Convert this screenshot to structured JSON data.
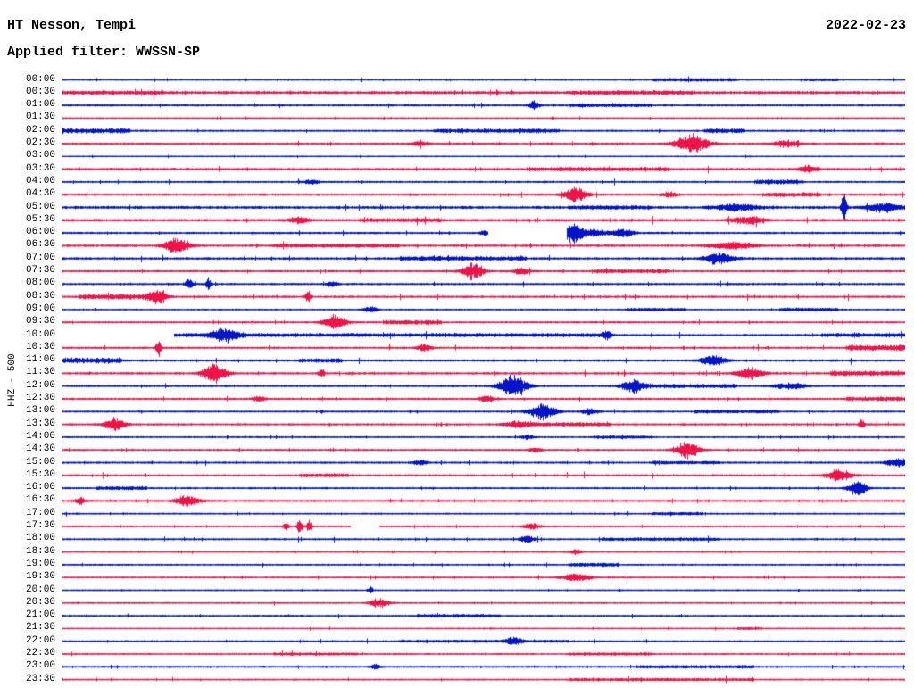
{
  "header": {
    "station": "HT Nesson, Tempi",
    "filter_label": "Applied filter: WWSSN-SP",
    "date": "2022-02-23"
  },
  "axis": {
    "channel_label": "HHZ - 500"
  },
  "colors": {
    "trace_blue": "#0014cc",
    "trace_red": "#f01248",
    "background": "#ffffff",
    "text": "#000000"
  },
  "chart_data": {
    "type": "line",
    "variant": "helicorder-seismogram",
    "title": "HT Nesson, Tempi",
    "subtitle": "Applied filter: WWSSN-SP",
    "date": "2022-02-23",
    "channel": "HHZ - 500",
    "minutes_per_row": 30,
    "rows_count": 48,
    "legend": "rows alternate blue (b) / red (r); e = events [position fraction, amplitude px, width px]; p = elevated-noise patches [start,end,amp]; g = data gaps [start,end]; n = base noise amplitude",
    "rows": [
      {
        "t": "00:00",
        "c": "b",
        "n": 0.5,
        "e": [],
        "p": [
          [
            0.7,
            0.8,
            1.2
          ],
          [
            0.88,
            0.92,
            0.8
          ]
        ],
        "g": []
      },
      {
        "t": "00:30",
        "c": "r",
        "n": 1.3,
        "e": [],
        "p": [
          [
            0.0,
            0.12,
            0.8
          ],
          [
            0.6,
            0.75,
            1.0
          ]
        ],
        "g": []
      },
      {
        "t": "01:00",
        "c": "b",
        "n": 0.8,
        "e": [
          [
            0.559,
            5,
            4
          ]
        ],
        "p": [
          [
            0.6,
            0.7,
            1.0
          ]
        ],
        "g": []
      },
      {
        "t": "01:30",
        "c": "r",
        "n": 0.45,
        "e": [],
        "p": [],
        "g": []
      },
      {
        "t": "02:00",
        "c": "b",
        "n": 0.7,
        "e": [],
        "p": [
          [
            0.0,
            0.08,
            1.8
          ],
          [
            0.44,
            0.59,
            1.4
          ],
          [
            0.76,
            0.81,
            1.6
          ]
        ],
        "g": []
      },
      {
        "t": "02:30",
        "c": "r",
        "n": 0.8,
        "e": [
          [
            0.747,
            13,
            12
          ],
          [
            0.424,
            3,
            6
          ],
          [
            0.858,
            4,
            10
          ]
        ],
        "p": [],
        "g": []
      },
      {
        "t": "03:00",
        "c": "b",
        "n": 0.4,
        "e": [],
        "p": [],
        "g": []
      },
      {
        "t": "03:30",
        "c": "r",
        "n": 1.0,
        "e": [
          [
            0.885,
            4,
            8
          ]
        ],
        "p": [
          [
            0.55,
            0.72,
            1.2
          ]
        ],
        "g": []
      },
      {
        "t": "04:00",
        "c": "b",
        "n": 0.7,
        "e": [
          [
            0.296,
            3,
            5
          ]
        ],
        "p": [
          [
            0.82,
            0.88,
            1.8
          ]
        ],
        "g": []
      },
      {
        "t": "04:30",
        "c": "r",
        "n": 0.9,
        "e": [
          [
            0.609,
            9,
            9
          ],
          [
            0.72,
            3,
            6
          ]
        ],
        "p": [
          [
            0.83,
            0.9,
            1.5
          ]
        ],
        "g": []
      },
      {
        "t": "05:00",
        "c": "b",
        "n": 1.2,
        "e": [
          [
            0.927,
            20,
            2
          ],
          [
            0.975,
            5,
            14
          ],
          [
            0.8,
            4,
            16
          ]
        ],
        "p": [
          [
            0.6,
            0.7,
            1.0
          ]
        ],
        "g": []
      },
      {
        "t": "05:30",
        "c": "r",
        "n": 1.1,
        "e": [
          [
            0.281,
            4,
            8
          ],
          [
            0.813,
            5,
            12
          ]
        ],
        "p": [
          [
            0.35,
            0.45,
            1.0
          ]
        ],
        "g": []
      },
      {
        "t": "06:00",
        "c": "b",
        "n": 0.8,
        "e": [
          [
            0.604,
            14,
            6
          ],
          [
            0.625,
            5,
            14
          ],
          [
            0.665,
            5,
            8
          ],
          [
            0.5,
            3,
            3
          ]
        ],
        "p": [],
        "g": [
          [
            0.505,
            0.598
          ]
        ]
      },
      {
        "t": "06:30",
        "c": "r",
        "n": 1.0,
        "e": [
          [
            0.135,
            10,
            9
          ],
          [
            0.795,
            5,
            16
          ]
        ],
        "p": [
          [
            0.25,
            0.4,
            1.0
          ]
        ],
        "g": []
      },
      {
        "t": "07:00",
        "c": "b",
        "n": 1.0,
        "e": [
          [
            0.779,
            8,
            11
          ]
        ],
        "p": [
          [
            0.4,
            0.55,
            1.3
          ]
        ],
        "g": []
      },
      {
        "t": "07:30",
        "c": "r",
        "n": 0.8,
        "e": [
          [
            0.487,
            10,
            8
          ],
          [
            0.545,
            4,
            6
          ]
        ],
        "p": [
          [
            0.63,
            0.72,
            1.2
          ]
        ],
        "g": []
      },
      {
        "t": "08:00",
        "c": "b",
        "n": 0.8,
        "e": [
          [
            0.15,
            6,
            3
          ],
          [
            0.173,
            8,
            2
          ],
          [
            0.32,
            3,
            4
          ]
        ],
        "p": [],
        "g": []
      },
      {
        "t": "08:30",
        "c": "r",
        "n": 0.9,
        "e": [
          [
            0.113,
            7,
            7
          ],
          [
            0.291,
            8,
            2
          ]
        ],
        "p": [
          [
            0.02,
            0.12,
            1.8
          ]
        ],
        "g": []
      },
      {
        "t": "09:00",
        "c": "b",
        "n": 0.55,
        "e": [
          [
            0.365,
            4,
            5
          ]
        ],
        "p": [
          [
            0.67,
            0.74,
            1.0
          ],
          [
            0.85,
            0.92,
            1.2
          ]
        ],
        "g": []
      },
      {
        "t": "09:30",
        "c": "r",
        "n": 0.75,
        "e": [
          [
            0.323,
            10,
            8
          ]
        ],
        "p": [
          [
            0.38,
            0.45,
            1.5
          ]
        ],
        "g": []
      },
      {
        "t": "10:00",
        "c": "b",
        "n": 0.8,
        "e": [
          [
            0.193,
            8,
            10
          ],
          [
            0.646,
            4,
            4
          ]
        ],
        "p": [
          [
            0.132,
            0.65,
            1.2
          ],
          [
            0.9,
            1.0,
            1.2
          ]
        ],
        "g": [
          [
            0.0,
            0.132
          ]
        ]
      },
      {
        "t": "10:30",
        "c": "r",
        "n": 0.8,
        "e": [
          [
            0.114,
            11,
            2
          ],
          [
            0.429,
            5,
            5
          ]
        ],
        "p": [
          [
            0.93,
            1.0,
            2.2
          ]
        ],
        "g": []
      },
      {
        "t": "11:00",
        "c": "b",
        "n": 0.9,
        "e": [
          [
            0.773,
            7,
            9
          ]
        ],
        "p": [
          [
            0.0,
            0.07,
            2.2
          ],
          [
            0.28,
            0.33,
            1.2
          ]
        ],
        "g": []
      },
      {
        "t": "11:30",
        "c": "r",
        "n": 0.9,
        "e": [
          [
            0.18,
            12,
            9
          ],
          [
            0.307,
            7,
            2
          ],
          [
            0.816,
            7,
            10
          ]
        ],
        "p": [
          [
            0.91,
            1.0,
            1.8
          ]
        ],
        "g": []
      },
      {
        "t": "12:00",
        "c": "b",
        "n": 0.8,
        "e": [
          [
            0.535,
            15,
            10
          ],
          [
            0.678,
            9,
            9
          ],
          [
            0.863,
            4,
            12
          ]
        ],
        "p": [
          [
            0.7,
            0.8,
            1.3
          ]
        ],
        "g": []
      },
      {
        "t": "12:30",
        "c": "r",
        "n": 0.8,
        "e": [
          [
            0.503,
            4,
            6
          ],
          [
            0.233,
            3,
            5
          ]
        ],
        "p": [
          [
            0.93,
            1.0,
            1.3
          ]
        ],
        "g": []
      },
      {
        "t": "13:00",
        "c": "b",
        "n": 0.7,
        "e": [
          [
            0.569,
            10,
            10
          ],
          [
            0.625,
            4,
            6
          ]
        ],
        "p": [
          [
            0.75,
            0.85,
            1.0
          ]
        ],
        "g": []
      },
      {
        "t": "13:30",
        "c": "r",
        "n": 0.8,
        "e": [
          [
            0.061,
            8,
            8
          ],
          [
            0.54,
            4,
            10
          ],
          [
            0.948,
            7,
            2
          ]
        ],
        "p": [
          [
            0.55,
            0.65,
            1.2
          ]
        ],
        "g": []
      },
      {
        "t": "14:00",
        "c": "b",
        "n": 0.6,
        "e": [
          [
            0.551,
            3,
            5
          ]
        ],
        "p": [
          [
            0.63,
            0.7,
            1.0
          ]
        ],
        "g": []
      },
      {
        "t": "14:30",
        "c": "r",
        "n": 0.7,
        "e": [
          [
            0.741,
            11,
            9
          ],
          [
            0.561,
            3,
            5
          ]
        ],
        "p": [],
        "g": []
      },
      {
        "t": "15:00",
        "c": "b",
        "n": 0.8,
        "e": [
          [
            0.99,
            6,
            8
          ],
          [
            0.424,
            3,
            5
          ]
        ],
        "p": [
          [
            0.7,
            0.78,
            1.0
          ]
        ],
        "g": []
      },
      {
        "t": "15:30",
        "c": "r",
        "n": 0.8,
        "e": [
          [
            0.921,
            7,
            10
          ]
        ],
        "p": [
          [
            0.28,
            0.34,
            1.2
          ]
        ],
        "g": []
      },
      {
        "t": "16:00",
        "c": "b",
        "n": 0.7,
        "e": [
          [
            0.943,
            10,
            7
          ]
        ],
        "p": [
          [
            0.04,
            0.1,
            1.3
          ]
        ],
        "g": []
      },
      {
        "t": "16:30",
        "c": "r",
        "n": 0.8,
        "e": [
          [
            0.148,
            7,
            9
          ],
          [
            0.021,
            4,
            4
          ]
        ],
        "p": [],
        "g": []
      },
      {
        "t": "17:00",
        "c": "b",
        "n": 0.6,
        "e": [],
        "p": [
          [
            0.7,
            0.76,
            1.0
          ]
        ],
        "g": []
      },
      {
        "t": "17:30",
        "c": "r",
        "n": 0.6,
        "e": [
          [
            0.281,
            9,
            2
          ],
          [
            0.292,
            7,
            2
          ],
          [
            0.265,
            5,
            2
          ],
          [
            0.556,
            4,
            6
          ]
        ],
        "p": [],
        "g": [
          [
            0.342,
            0.376
          ]
        ]
      },
      {
        "t": "18:00",
        "c": "b",
        "n": 0.7,
        "e": [
          [
            0.551,
            5,
            5
          ]
        ],
        "p": [
          [
            0.64,
            0.78,
            0.9
          ]
        ],
        "g": []
      },
      {
        "t": "18:30",
        "c": "r",
        "n": 0.5,
        "e": [
          [
            0.609,
            3,
            4
          ]
        ],
        "p": [],
        "g": []
      },
      {
        "t": "19:00",
        "c": "b",
        "n": 0.6,
        "e": [],
        "p": [
          [
            0.6,
            0.66,
            1.3
          ]
        ],
        "g": []
      },
      {
        "t": "19:30",
        "c": "r",
        "n": 0.6,
        "e": [
          [
            0.61,
            5,
            10
          ]
        ],
        "p": [],
        "g": []
      },
      {
        "t": "20:00",
        "c": "b",
        "n": 0.5,
        "e": [
          [
            0.365,
            5,
            2
          ]
        ],
        "p": [],
        "g": []
      },
      {
        "t": "20:30",
        "c": "r",
        "n": 0.55,
        "e": [
          [
            0.376,
            6,
            7
          ]
        ],
        "p": [],
        "g": []
      },
      {
        "t": "21:00",
        "c": "b",
        "n": 0.6,
        "e": [],
        "p": [
          [
            0.42,
            0.52,
            1.0
          ]
        ],
        "g": []
      },
      {
        "t": "21:30",
        "c": "r",
        "n": 0.45,
        "e": [],
        "p": [
          [
            0.8,
            0.83,
            0.8
          ]
        ],
        "g": []
      },
      {
        "t": "22:00",
        "c": "b",
        "n": 0.65,
        "e": [
          [
            0.535,
            5,
            5
          ]
        ],
        "p": [
          [
            0.4,
            0.6,
            0.8
          ]
        ],
        "g": []
      },
      {
        "t": "22:30",
        "c": "r",
        "n": 0.6,
        "e": [],
        "p": [
          [
            0.25,
            0.35,
            0.8
          ],
          [
            0.6,
            0.7,
            0.9
          ]
        ],
        "g": []
      },
      {
        "t": "23:00",
        "c": "b",
        "n": 0.7,
        "e": [
          [
            0.371,
            3,
            4
          ]
        ],
        "p": [
          [
            0.68,
            0.82,
            1.0
          ]
        ],
        "g": []
      },
      {
        "t": "23:30",
        "c": "r",
        "n": 0.55,
        "e": [],
        "p": [
          [
            0.6,
            0.82,
            0.9
          ]
        ],
        "g": []
      }
    ]
  }
}
